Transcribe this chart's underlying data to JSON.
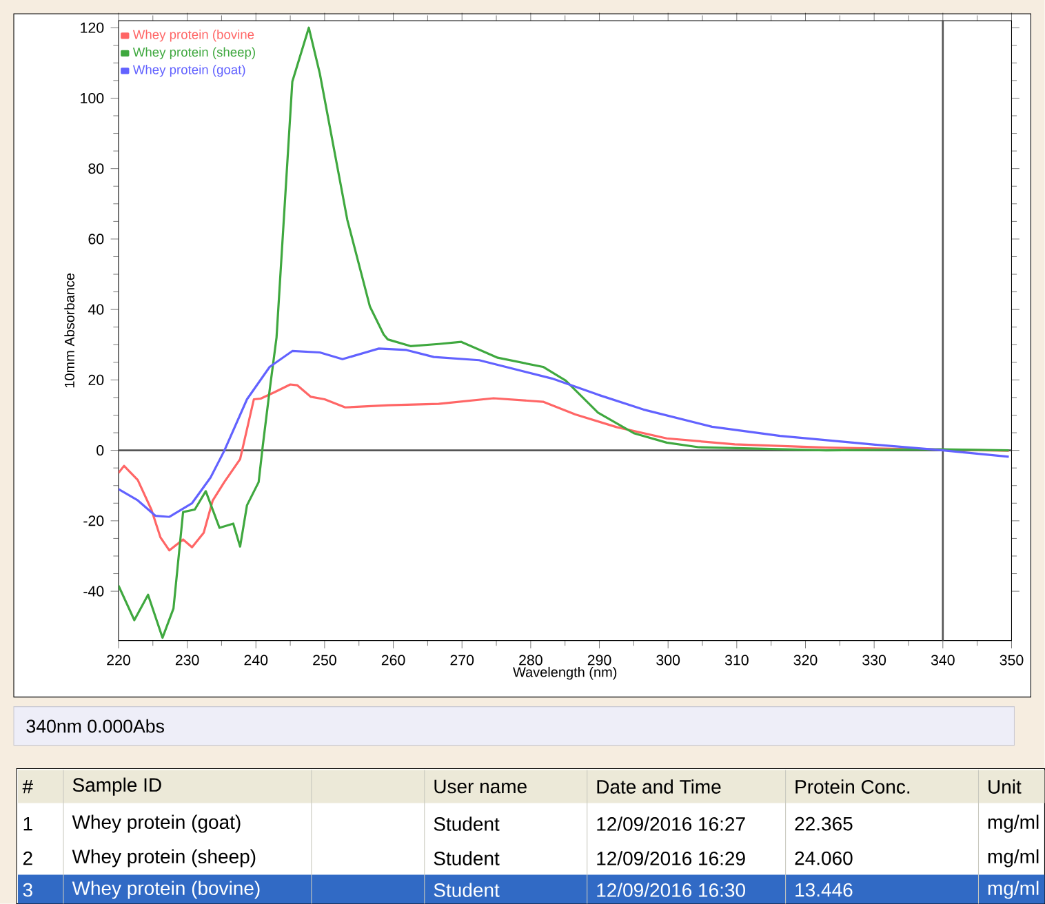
{
  "chart_data": {
    "type": "line",
    "xlabel": "Wavelength (nm)",
    "ylabel": "10mm Absorbance",
    "xlim": [
      220,
      350
    ],
    "ylim": [
      -54,
      122
    ],
    "xticks": [
      220,
      230,
      240,
      250,
      260,
      270,
      280,
      290,
      300,
      310,
      320,
      330,
      340,
      350
    ],
    "yticks": [
      -40,
      -20,
      0,
      20,
      40,
      60,
      80,
      100,
      120
    ],
    "grid": false,
    "legend": "top left",
    "marker": "none",
    "line_style": "solid",
    "series": [
      {
        "name": "Whey protein (bovine",
        "color": "#ff6666",
        "x": [
          220,
          220.8,
          222.8,
          224.8,
          226.1,
          227.4,
          229.4,
          230.7,
          232.4,
          233.7,
          235.4,
          237.7,
          239.7,
          240.7,
          242.7,
          245,
          246,
          248,
          250,
          253,
          259.3,
          266.6,
          274.6,
          281.8,
          286.5,
          292.5,
          299.8,
          309.7,
          323,
          338.3,
          349.6
        ],
        "values": [
          -6.4,
          -4.4,
          -8.4,
          -16.9,
          -24.7,
          -28.4,
          -25.3,
          -27.5,
          -23.4,
          -14.3,
          -9,
          -2.5,
          14.5,
          14.7,
          16.5,
          18.7,
          18.5,
          15.2,
          14.5,
          12.2,
          12.8,
          13.2,
          14.8,
          13.8,
          10.2,
          6.6,
          3.4,
          1.7,
          0.8,
          null,
          -0.1
        ]
      },
      {
        "name": "Whey protein (sheep)",
        "color": "#3fa83f",
        "x": [
          220,
          222.3,
          224.3,
          226.4,
          228,
          229.4,
          231.1,
          232.7,
          234.7,
          236.7,
          237.7,
          238.7,
          240.4,
          241,
          242,
          243,
          245.3,
          247.7,
          249.3,
          253.3,
          256.6,
          258.6,
          259.2,
          262.5,
          266.6,
          269.9,
          275.2,
          281.8,
          285.1,
          289.8,
          295.1,
          299.8,
          304.4,
          313,
          323,
          339.5,
          349.6
        ],
        "values": [
          -38.4,
          -48.2,
          -41,
          -53.2,
          -44.9,
          -17.5,
          -16.8,
          -11.6,
          -22,
          -20.8,
          -27.3,
          -15.6,
          -9,
          1.3,
          17.1,
          32,
          104.7,
          120,
          107,
          65.5,
          40.8,
          32.9,
          31.5,
          29.6,
          30.2,
          30.8,
          26.3,
          23.7,
          19.8,
          10.7,
          4.8,
          2.2,
          0.9,
          0.5,
          0,
          0.3,
          0
        ]
      },
      {
        "name": "Whey protein (goat)",
        "color": "#6262ff",
        "x": [
          220,
          222.8,
          225.4,
          227.4,
          230.7,
          233.4,
          235.4,
          238.7,
          242,
          245.3,
          249.3,
          252.6,
          257.9,
          261.9,
          265.9,
          272.5,
          283.1,
          289.8,
          296.4,
          306.4,
          316.3,
          329.6,
          339.5,
          349.6
        ],
        "values": [
          -11,
          -14.2,
          -18.6,
          -18.9,
          -15,
          -7.7,
          -0.1,
          14.5,
          23.7,
          28.2,
          27.8,
          25.9,
          28.9,
          28.5,
          26.5,
          25.6,
          20.4,
          15.8,
          11.6,
          6.7,
          4.1,
          1.7,
          0.1,
          -1.8
        ]
      }
    ],
    "ref_lines": [
      {
        "axis": "x",
        "value": 340,
        "color": "#555555"
      },
      {
        "axis": "y",
        "value": 0,
        "color": "#555555"
      }
    ],
    "annotations": [
      "340nm 0.000Abs",
      "#",
      "Sample ID",
      "User name",
      "Date and Time",
      "Protein Conc.",
      "Unit",
      "1",
      "Whey protein (goat)",
      "Student",
      "12/09/2016 16:27",
      "22.365",
      "mg/ml",
      "2",
      "Whey protein (sheep)",
      "Student",
      "12/09/2016 16:29",
      "24.060",
      "mg/ml",
      "3",
      "Whey protein (bovine)",
      "Student",
      "12/09/2016 16:30",
      "13.446",
      "mg/ml"
    ]
  }
}
